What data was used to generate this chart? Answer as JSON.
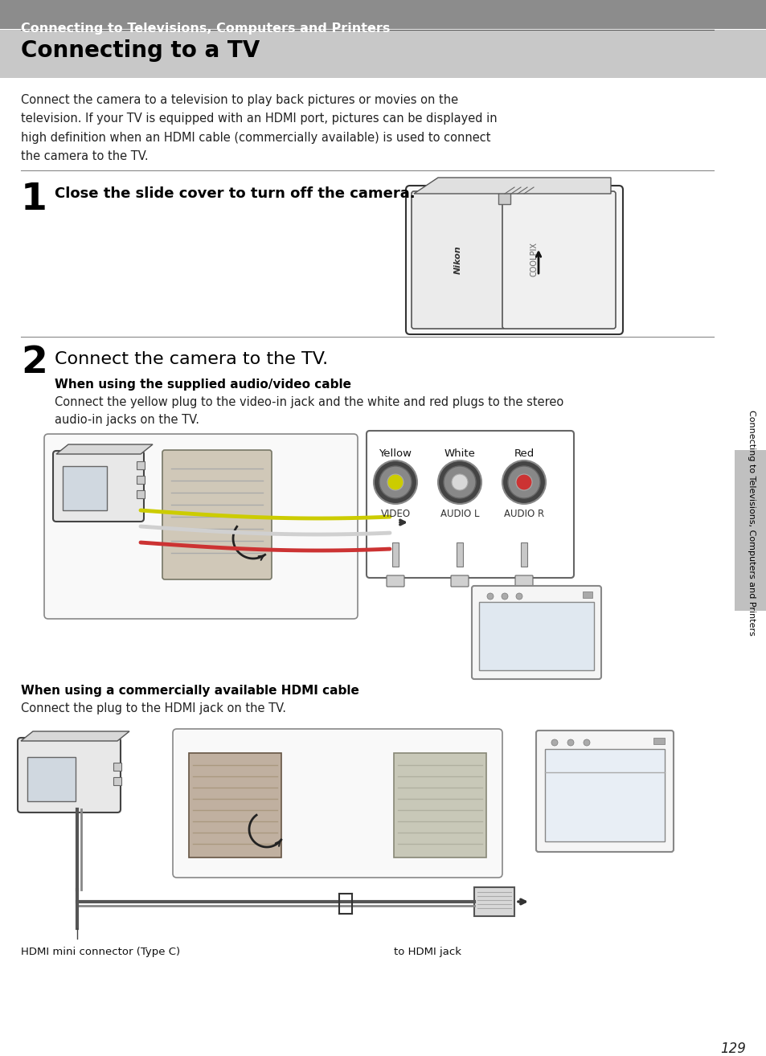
{
  "page_bg": "#ffffff",
  "header_bg": "#8c8c8c",
  "title_area_bg": "#c8c8c8",
  "header_text": "Connecting to Televisions, Computers and Printers",
  "header_text_color": "#ffffff",
  "header_text_size": 11.5,
  "title": "Connecting to a TV",
  "title_size": 20,
  "title_color": "#000000",
  "body_text": "Connect the camera to a television to play back pictures or movies on the\ntelevision. If your TV is equipped with an HDMI port, pictures can be displayed in\nhigh definition when an HDMI cable (commercially available) is used to connect\nthe camera to the TV.",
  "body_text_size": 10.5,
  "body_text_color": "#222222",
  "step1_number": "1",
  "step1_text": "Close the slide cover to turn off the camera.",
  "step1_text_size": 13,
  "step2_number": "2",
  "step2_text": "Connect the camera to the TV.",
  "step2_text_size": 16,
  "step2_sub1_title": "When using the supplied audio/video cable",
  "step2_sub1_body": "Connect the yellow plug to the video-in jack and the white and red plugs to the stereo\naudio-in jacks on the TV.",
  "step2_sub2_title": "When using a commercially available HDMI cable",
  "step2_sub2_body": "Connect the plug to the HDMI jack on the TV.",
  "label_hdmi_mini": "HDMI mini connector (Type C)",
  "label_hdmi_jack": "to HDMI jack",
  "page_number": "129",
  "side_text": "Connecting to Televisions, Computers and Printers",
  "side_text_color": "#000000",
  "separator_color": "#888888"
}
